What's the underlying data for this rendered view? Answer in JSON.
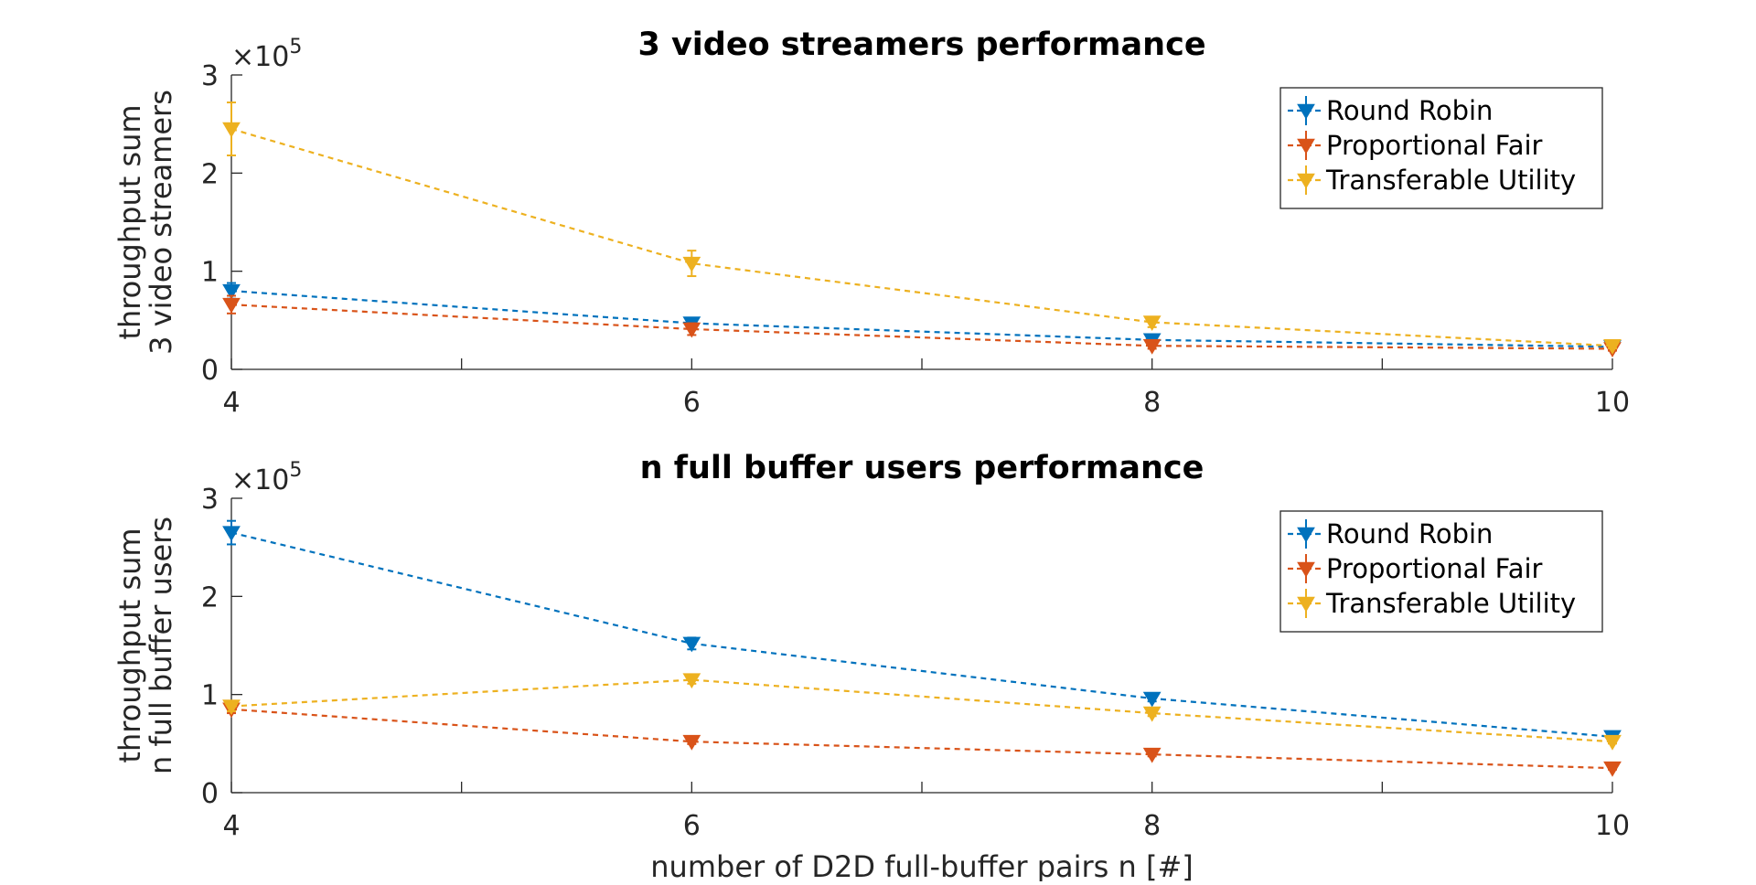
{
  "chart_data": [
    {
      "type": "line",
      "title": "3 video streamers performance",
      "xlabel": "",
      "ylabel": [
        "throughput sum",
        "3 video streamers"
      ],
      "xlim": [
        4,
        10
      ],
      "ylim": [
        0,
        300000
      ],
      "x": [
        4,
        6,
        8,
        10
      ],
      "xticks": [
        4,
        5,
        6,
        7,
        8,
        9,
        10
      ],
      "xtick_labels": [
        "4",
        "",
        "6",
        "",
        "8",
        "",
        "10"
      ],
      "yticks": [
        0,
        100000,
        200000,
        300000
      ],
      "ytick_labels": [
        "0",
        "1",
        "2",
        "3"
      ],
      "y_exponent": {
        "base": "×10",
        "power": "5"
      },
      "grid": false,
      "legend_placement": "top-right",
      "series": [
        {
          "name": "Round Robin",
          "color": "#0072BD",
          "values": [
            80000,
            47000,
            30000,
            23000
          ],
          "err": [
            8000,
            4000,
            2500,
            2000
          ]
        },
        {
          "name": "Proportional Fair",
          "color": "#D95319",
          "values": [
            66000,
            41000,
            24000,
            21000
          ],
          "err": [
            9000,
            6000,
            3000,
            2000
          ]
        },
        {
          "name": "Transferable Utility",
          "color": "#EDB120",
          "values": [
            245000,
            108000,
            48000,
            24000
          ],
          "err": [
            27000,
            13000,
            5000,
            2500
          ]
        }
      ]
    },
    {
      "type": "line",
      "title": "n full buffer users performance",
      "xlabel": "number of D2D full-buffer pairs n [#]",
      "ylabel": [
        "throughput sum",
        "n full buffer users"
      ],
      "xlim": [
        4,
        10
      ],
      "ylim": [
        0,
        300000
      ],
      "x": [
        4,
        6,
        8,
        10
      ],
      "xticks": [
        4,
        5,
        6,
        7,
        8,
        9,
        10
      ],
      "xtick_labels": [
        "4",
        "",
        "6",
        "",
        "8",
        "",
        "10"
      ],
      "yticks": [
        0,
        100000,
        200000,
        300000
      ],
      "ytick_labels": [
        "0",
        "1",
        "2",
        "3"
      ],
      "y_exponent": {
        "base": "×10",
        "power": "5"
      },
      "grid": false,
      "legend_placement": "top-right",
      "series": [
        {
          "name": "Round Robin",
          "color": "#0072BD",
          "values": [
            265000,
            152000,
            96000,
            57000
          ],
          "err": [
            12000,
            6000,
            3000,
            2000
          ]
        },
        {
          "name": "Proportional Fair",
          "color": "#D95319",
          "values": [
            85000,
            52000,
            39000,
            25000
          ],
          "err": [
            4000,
            2500,
            2000,
            1500
          ]
        },
        {
          "name": "Transferable Utility",
          "color": "#EDB120",
          "values": [
            88000,
            115000,
            81000,
            52000
          ],
          "err": [
            5000,
            4000,
            3000,
            2000
          ]
        }
      ]
    }
  ]
}
